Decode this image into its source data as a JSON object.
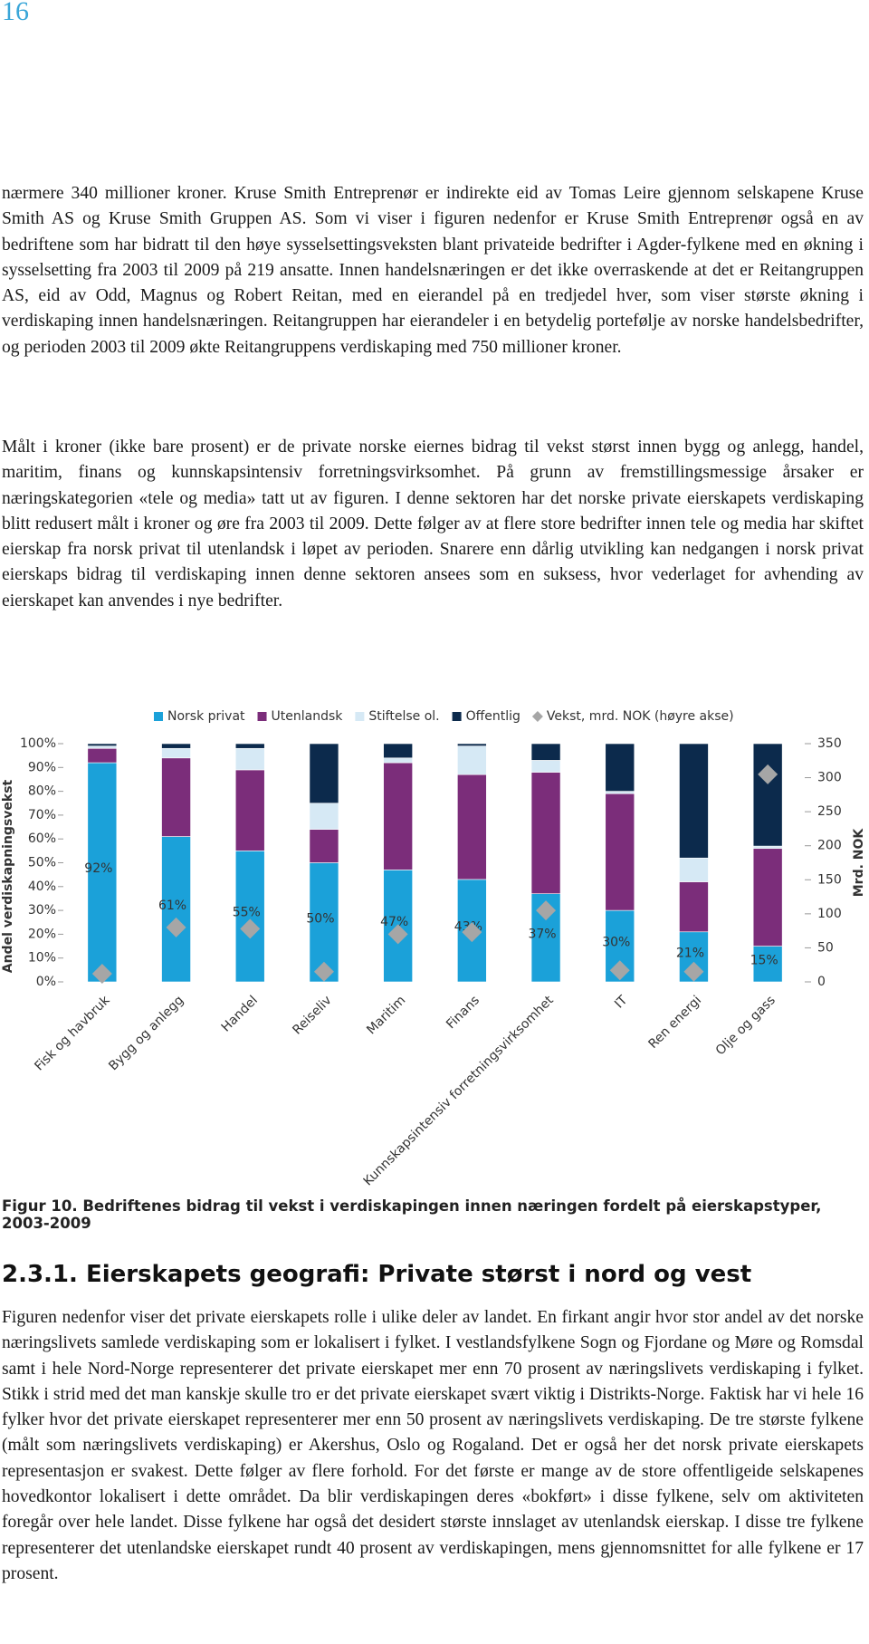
{
  "header": {
    "page_number": "16"
  },
  "paragraphs": [
    "nærmere 340 millioner kroner. Kruse Smith Entreprenør er indirekte eid av Tomas Leire gjennom selskapene Kruse Smith AS og Kruse Smith Gruppen AS. Som vi viser i figuren nedenfor er Kruse Smith Entreprenør også en av bedriftene som har bidratt til den høye sysselsettingsveksten blant privateide bedrifter i Agder-fylkene med en økning i sysselsetting fra 2003 til 2009 på 219 ansatte. Innen handelsnæringen er det ikke overraskende at det er Reitangruppen AS, eid av Odd, Magnus og Robert Reitan, med en eierandel på en tredjedel hver, som viser største økning i verdiskaping innen handelsnæringen. Reitangruppen har eierandeler i en betydelig portefølje av norske handelsbedrifter, og perioden 2003 til 2009 økte Reitangruppens verdiskaping med 750 millioner kroner.",
    "Målt i kroner (ikke bare prosent) er de private norske eiernes bidrag til vekst størst innen bygg og anlegg, handel, maritim, finans og kunnskapsintensiv forretningsvirksomhet. På grunn av fremstillingsmessige årsaker er næringskategorien «tele og media» tatt ut av figuren. I denne sektoren har det norske private eierskapets verdiskaping blitt redusert målt i kroner og øre fra 2003 til 2009. Dette følger av at flere store bedrifter innen tele og media har skiftet eierskap fra norsk privat til utenlandsk i løpet av perioden. Snarere enn dårlig utvikling kan nedgangen i norsk privat eierskaps bidrag til verdiskaping innen denne sektoren ansees som en suksess, hvor vederlaget for avhending av eierskapet kan anvendes i nye bedrifter."
  ],
  "chart_data": {
    "type": "stacked_bar",
    "y_label": "Andel verdiskapningsvekst",
    "y2_label": "Mrd. NOK",
    "categories": [
      "Fisk og havbruk",
      "Bygg og anlegg",
      "Handel",
      "Reiseliv",
      "Maritim",
      "Finans",
      "Kunnskapsintensiv forretningsvirksomhet",
      "IT",
      "Ren energi",
      "Olje og gass"
    ],
    "series": [
      {
        "name": "Norsk privat",
        "color": "#1ba1d9",
        "values": [
          92,
          61,
          55,
          50,
          47,
          43,
          37,
          30,
          21,
          15
        ],
        "value_labels": [
          "92%",
          "61%",
          "55%",
          "50%",
          "47%",
          "43%",
          "37%",
          "30%",
          "21%",
          "15%"
        ]
      },
      {
        "name": "Utenlandsk",
        "color": "#7b2d7a",
        "values": [
          6,
          33,
          34,
          14,
          45,
          44,
          51,
          49,
          21,
          41
        ]
      },
      {
        "name": "Stiftelse ol.",
        "color": "#d6e9f5",
        "values": [
          1,
          4,
          9,
          11,
          2,
          12,
          5,
          1,
          10,
          1
        ]
      },
      {
        "name": "Offentlig",
        "color": "#0c2a4c",
        "values": [
          1,
          2,
          2,
          25,
          6,
          1,
          7,
          20,
          48,
          43
        ]
      },
      {
        "name": "Vekst, mrd. NOK (høyre akse)",
        "color": "#a6a6a6",
        "axis": "y2",
        "values": [
          12,
          80,
          78,
          15,
          70,
          73,
          105,
          17,
          15,
          305
        ]
      }
    ],
    "ylim": [
      0,
      100
    ],
    "yticks": [
      {
        "value": 0,
        "label": "0%"
      },
      {
        "value": 10,
        "label": "10%"
      },
      {
        "value": 20,
        "label": "20%"
      },
      {
        "value": 30,
        "label": "30%"
      },
      {
        "value": 40,
        "label": "40%"
      },
      {
        "value": 50,
        "label": "50%"
      },
      {
        "value": 60,
        "label": "60%"
      },
      {
        "value": 70,
        "label": "70%"
      },
      {
        "value": 80,
        "label": "80%"
      },
      {
        "value": 90,
        "label": "90%"
      },
      {
        "value": 100,
        "label": "100%"
      }
    ],
    "y2lim": [
      0,
      350
    ],
    "y2ticks": [
      0,
      50,
      100,
      150,
      200,
      250,
      300,
      350
    ],
    "legend": "top"
  },
  "caption": "Figur 10. Bedriftenes bidrag til vekst i verdiskapingen innen næringen fordelt på eierskapstyper, 2003-2009",
  "section": {
    "heading": "2.3.1. Eierskapets geografi: Private størst i nord og vest",
    "paragraph": "Figuren nedenfor viser det private eierskapets rolle i ulike deler av landet. En firkant angir hvor stor andel av det norske næringslivets samlede verdiskaping som er lokalisert i fylket. I vestlandsfylkene Sogn og Fjordane og Møre og Romsdal samt i hele Nord-Norge representerer det private eierskapet mer enn 70 prosent av næringslivets verdiskaping i fylket. Stikk i strid med det man kanskje skulle tro er det private eierskapet svært viktig i Distrikts-Norge. Faktisk har vi hele 16 fylker hvor det private eierskapet representerer mer enn 50 prosent av næringslivets verdiskaping. De tre største fylkene (målt som næringslivets verdiskaping) er Akershus, Oslo og Rogaland. Det er også her det norsk private eierskapets representasjon er svakest. Dette følger av flere forhold. For det første er mange av de store offentligeide selskapenes hovedkontor lokalisert i dette området. Da blir verdiskapingen deres «bokført» i disse fylkene, selv om aktiviteten foregår over hele landet. Disse fylkene har også det desidert største innslaget av utenlandsk eierskap. I disse tre fylkene representerer det utenlandske eierskapet rundt 40 prosent av verdiskapingen, mens gjennomsnittet for alle fylkene er 17 prosent."
  }
}
